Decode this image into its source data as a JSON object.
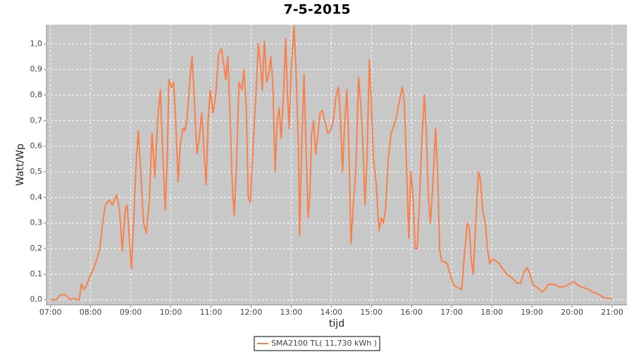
{
  "chart_data": {
    "type": "line",
    "title": "7-5-2015",
    "x_label": "tijd",
    "y_label": "Watt/Wp",
    "x": [
      7.0,
      7.14,
      7.26,
      7.37,
      7.49,
      7.58,
      7.67,
      7.72,
      7.77,
      7.84,
      7.91,
      7.98,
      8.07,
      8.14,
      8.23,
      8.3,
      8.37,
      8.46,
      8.54,
      8.65,
      8.72,
      8.79,
      8.86,
      8.91,
      8.96,
      9.02,
      9.07,
      9.14,
      9.19,
      9.25,
      9.32,
      9.39,
      9.46,
      9.53,
      9.6,
      9.67,
      9.74,
      9.79,
      9.86,
      9.91,
      9.95,
      10.02,
      10.07,
      10.12,
      10.18,
      10.23,
      10.3,
      10.35,
      10.4,
      10.47,
      10.53,
      10.58,
      10.65,
      10.7,
      10.77,
      10.82,
      10.88,
      10.93,
      10.98,
      11.05,
      11.12,
      11.19,
      11.26,
      11.32,
      11.37,
      11.42,
      11.47,
      11.53,
      11.58,
      11.63,
      11.7,
      11.77,
      11.82,
      11.88,
      11.93,
      11.98,
      12.05,
      12.12,
      12.18,
      12.23,
      12.28,
      12.33,
      12.39,
      12.44,
      12.49,
      12.54,
      12.6,
      12.65,
      12.7,
      12.75,
      12.81,
      12.86,
      12.91,
      12.95,
      13.0,
      13.07,
      13.12,
      13.18,
      13.21,
      13.26,
      13.32,
      13.37,
      13.42,
      13.46,
      13.51,
      13.56,
      13.61,
      13.67,
      13.72,
      13.77,
      13.84,
      13.91,
      13.98,
      14.05,
      14.12,
      14.18,
      14.23,
      14.28,
      14.33,
      14.39,
      14.44,
      14.49,
      14.54,
      14.61,
      14.68,
      14.74,
      14.79,
      14.84,
      14.89,
      14.95,
      15.0,
      15.05,
      15.12,
      15.19,
      15.25,
      15.3,
      15.35,
      15.42,
      15.49,
      15.56,
      15.63,
      15.7,
      15.77,
      15.82,
      15.88,
      15.93,
      15.98,
      16.04,
      16.09,
      16.14,
      16.19,
      16.25,
      16.32,
      16.37,
      16.42,
      16.47,
      16.53,
      16.6,
      16.65,
      16.7,
      16.75,
      16.82,
      16.89,
      16.96,
      17.04,
      17.11,
      17.18,
      17.25,
      17.32,
      17.39,
      17.44,
      17.49,
      17.54,
      17.6,
      17.67,
      17.72,
      17.77,
      17.84,
      17.89,
      17.95,
      18.02,
      18.11,
      18.19,
      18.28,
      18.37,
      18.46,
      18.54,
      18.63,
      18.72,
      18.81,
      18.88,
      18.95,
      19.02,
      19.11,
      19.19,
      19.26,
      19.33,
      19.4,
      19.51,
      19.6,
      19.68,
      19.77,
      19.86,
      19.98,
      20.05,
      20.12,
      20.23,
      20.33,
      20.42,
      20.51,
      20.6,
      20.68,
      20.77,
      20.86,
      20.96,
      21.0
    ],
    "series": [
      {
        "name": "SMA2100 TL( 11,730 kWh )",
        "color": "#f9804a",
        "values": [
          0,
          0,
          0.02,
          0.02,
          0,
          0.005,
          0,
          0,
          0.06,
          0.04,
          0.06,
          0.09,
          0.12,
          0.15,
          0.2,
          0.3,
          0.37,
          0.39,
          0.37,
          0.41,
          0.35,
          0.19,
          0.35,
          0.37,
          0.25,
          0.12,
          0.3,
          0.55,
          0.66,
          0.5,
          0.3,
          0.26,
          0.38,
          0.65,
          0.48,
          0.7,
          0.82,
          0.6,
          0.35,
          0.55,
          0.86,
          0.83,
          0.85,
          0.7,
          0.46,
          0.6,
          0.67,
          0.66,
          0.7,
          0.85,
          0.95,
          0.8,
          0.57,
          0.62,
          0.73,
          0.6,
          0.45,
          0.7,
          0.82,
          0.73,
          0.8,
          0.96,
          0.98,
          0.92,
          0.86,
          0.95,
          0.75,
          0.45,
          0.33,
          0.5,
          0.85,
          0.82,
          0.9,
          0.75,
          0.4,
          0.38,
          0.6,
          0.8,
          1.0,
          0.93,
          0.82,
          1.01,
          0.85,
          0.88,
          0.95,
          0.85,
          0.5,
          0.7,
          0.75,
          0.63,
          0.8,
          1.02,
          0.8,
          0.67,
          0.9,
          1.07,
          0.9,
          0.6,
          0.25,
          0.6,
          0.88,
          0.6,
          0.32,
          0.4,
          0.65,
          0.7,
          0.57,
          0.65,
          0.73,
          0.74,
          0.7,
          0.65,
          0.66,
          0.7,
          0.8,
          0.83,
          0.7,
          0.5,
          0.68,
          0.82,
          0.58,
          0.22,
          0.35,
          0.5,
          0.87,
          0.75,
          0.6,
          0.37,
          0.55,
          0.94,
          0.75,
          0.55,
          0.45,
          0.27,
          0.32,
          0.3,
          0.35,
          0.55,
          0.65,
          0.68,
          0.72,
          0.78,
          0.83,
          0.77,
          0.5,
          0.24,
          0.5,
          0.4,
          0.2,
          0.2,
          0.35,
          0.6,
          0.8,
          0.65,
          0.4,
          0.3,
          0.45,
          0.67,
          0.5,
          0.2,
          0.15,
          0.15,
          0.14,
          0.1,
          0.06,
          0.05,
          0.045,
          0.04,
          0.18,
          0.3,
          0.28,
          0.15,
          0.1,
          0.3,
          0.5,
          0.47,
          0.35,
          0.3,
          0.2,
          0.14,
          0.16,
          0.15,
          0.14,
          0.12,
          0.1,
          0.09,
          0.08,
          0.065,
          0.065,
          0.11,
          0.125,
          0.1,
          0.06,
          0.05,
          0.04,
          0.03,
          0.04,
          0.06,
          0.06,
          0.058,
          0.05,
          0.05,
          0.055,
          0.065,
          0.07,
          0.06,
          0.05,
          0.045,
          0.04,
          0.03,
          0.025,
          0.02,
          0.01,
          0.005,
          0.005,
          0
        ]
      }
    ],
    "xlim": [
      6.9,
      21.37
    ],
    "ylim": [
      -0.02,
      1.075
    ],
    "xticks": [
      {
        "value": 7,
        "label": "07:00"
      },
      {
        "value": 8,
        "label": "08:00"
      },
      {
        "value": 9,
        "label": "09:00"
      },
      {
        "value": 10,
        "label": "10:00"
      },
      {
        "value": 11,
        "label": "11:00"
      },
      {
        "value": 12,
        "label": "12:00"
      },
      {
        "value": 13,
        "label": "13:00"
      },
      {
        "value": 14,
        "label": "14:00"
      },
      {
        "value": 15,
        "label": "15:00"
      },
      {
        "value": 16,
        "label": "16:00"
      },
      {
        "value": 17,
        "label": "17:00"
      },
      {
        "value": 18,
        "label": "18:00"
      },
      {
        "value": 19,
        "label": "19:00"
      },
      {
        "value": 20,
        "label": "20:00"
      },
      {
        "value": 21,
        "label": "21:00"
      }
    ],
    "yticks": [
      {
        "value": 0,
        "label": "0,0"
      },
      {
        "value": 0.1,
        "label": "0,1"
      },
      {
        "value": 0.2,
        "label": "0,2"
      },
      {
        "value": 0.3,
        "label": "0,3"
      },
      {
        "value": 0.4,
        "label": "0,4"
      },
      {
        "value": 0.5,
        "label": "0,5"
      },
      {
        "value": 0.6,
        "label": "0,6"
      },
      {
        "value": 0.7,
        "label": "0,7"
      },
      {
        "value": 0.8,
        "label": "0,8"
      },
      {
        "value": 0.9,
        "label": "0,9"
      },
      {
        "value": 1,
        "label": "1,0"
      }
    ],
    "grid": true
  }
}
